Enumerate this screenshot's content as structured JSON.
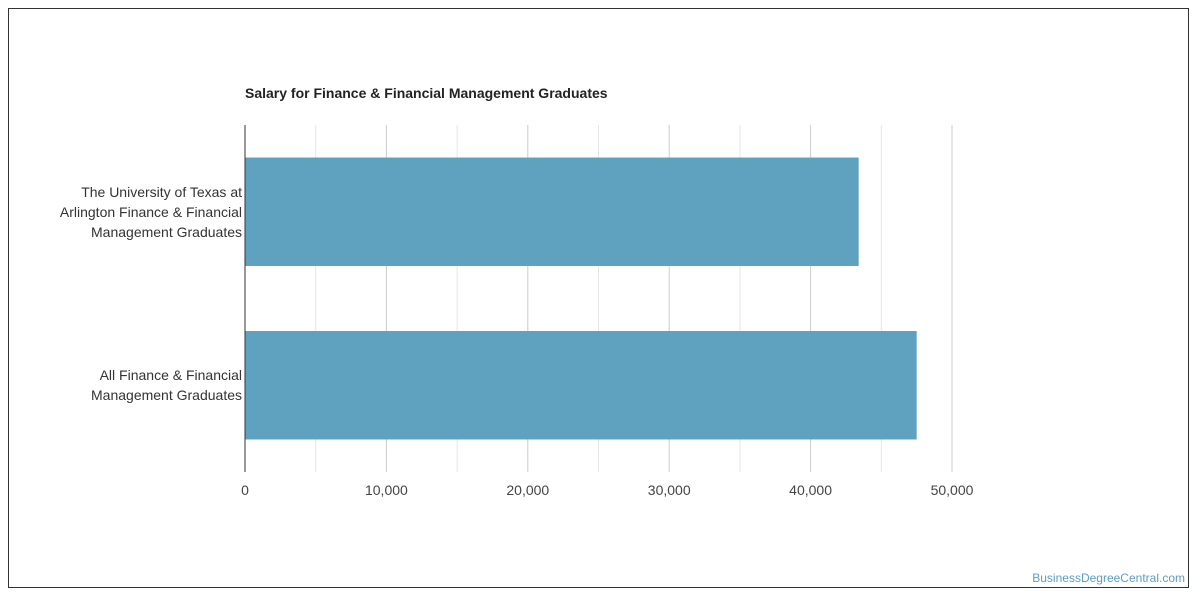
{
  "chart_data": {
    "type": "bar",
    "orientation": "horizontal",
    "title": "Salary for Finance & Financial Management Graduates",
    "categories": [
      "The University of Texas at Arlington Finance & Financial Management Graduates",
      "All Finance & Financial Management Graduates"
    ],
    "category_label_lines": [
      [
        "The University of Texas at",
        "Arlington Finance & Financial",
        "Management Graduates"
      ],
      [
        "All Finance & Financial",
        "Management Graduates"
      ]
    ],
    "values": [
      43400,
      47500
    ],
    "xlim": [
      0,
      52000
    ],
    "x_ticks": [
      0,
      10000,
      20000,
      30000,
      40000,
      50000
    ],
    "x_tick_labels": [
      "0",
      "10,000",
      "20,000",
      "30,000",
      "40,000",
      "50,000"
    ],
    "xlabel": "",
    "ylabel": "",
    "grid": true,
    "bar_color": "#5ea2bf"
  },
  "credit": "BusinessDegreeCentral.com"
}
